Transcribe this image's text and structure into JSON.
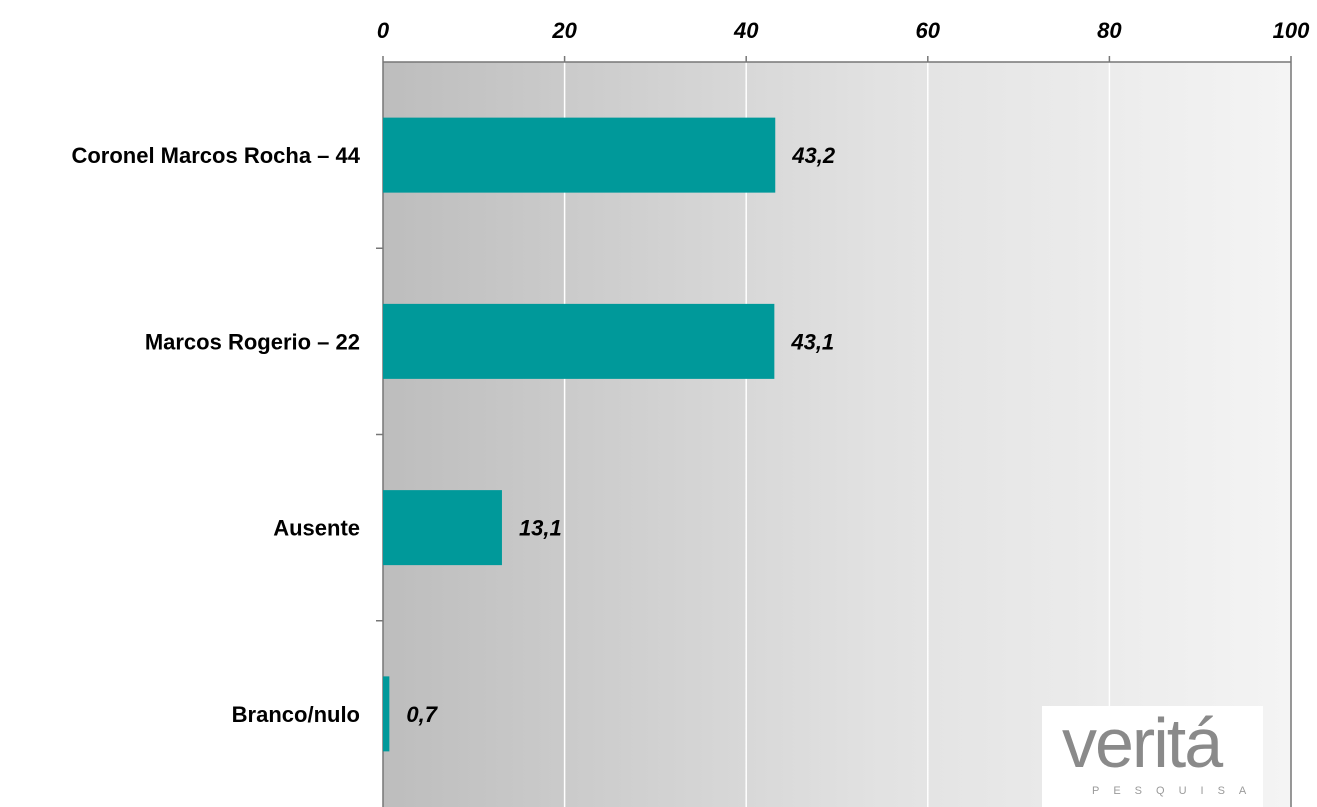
{
  "chart_data": {
    "type": "bar",
    "orientation": "horizontal",
    "categories": [
      "Coronel Marcos Rocha – 44",
      "Marcos Rogerio – 22",
      "Ausente",
      "Branco/nulo"
    ],
    "values": [
      43.2,
      43.1,
      13.1,
      0.7
    ],
    "value_labels": [
      "43,2",
      "43,1",
      "13,1",
      "0,7"
    ],
    "xlim": [
      0,
      100
    ],
    "x_ticks": [
      0,
      20,
      40,
      60,
      80,
      100
    ],
    "x_tick_labels": [
      "0",
      "20",
      "40",
      "60",
      "80",
      "100"
    ],
    "x_axis_position": "top",
    "grid": true,
    "bar_color": "#00999a",
    "background": "gradient gray"
  },
  "logo": {
    "word": "veritá",
    "subtitle": "PESQUISA"
  }
}
